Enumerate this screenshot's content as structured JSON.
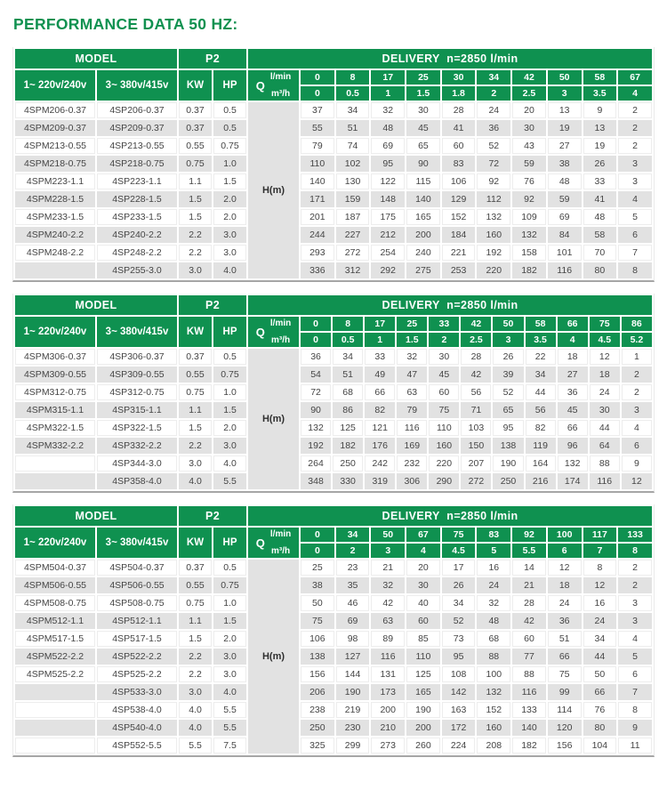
{
  "title": "PERFORMANCE DATA 50 HZ:",
  "colors": {
    "accent_green": "#0f9150",
    "row_stripe": "#e2e2e2",
    "data_text": "#454545"
  },
  "labels": {
    "model": "MODEL",
    "p2": "P2",
    "delivery": "DELIVERY  n=2850 l/min",
    "phase1": "1~ 220v/240v",
    "phase3": "3~ 380v/415v",
    "kw": "KW",
    "hp": "HP",
    "q": "Q",
    "lmin": "l/min",
    "m3h": "m³/h",
    "head": "H(m)"
  },
  "tables": [
    {
      "lmin": [
        "0",
        "8",
        "17",
        "25",
        "30",
        "34",
        "42",
        "50",
        "58",
        "67"
      ],
      "m3h": [
        "0",
        "0.5",
        "1",
        "1.5",
        "1.8",
        "2",
        "2.5",
        "3",
        "3.5",
        "4"
      ],
      "rows": [
        {
          "m1": "4SPM206-0.37",
          "m3": "4SP206-0.37",
          "kw": "0.37",
          "hp": "0.5",
          "h": [
            37,
            34,
            32,
            30,
            28,
            24,
            20,
            13,
            9,
            2
          ]
        },
        {
          "m1": "4SPM209-0.37",
          "m3": "4SP209-0.37",
          "kw": "0.37",
          "hp": "0.5",
          "h": [
            55,
            51,
            48,
            45,
            41,
            36,
            30,
            19,
            13,
            2
          ]
        },
        {
          "m1": "4SPM213-0.55",
          "m3": "4SP213-0.55",
          "kw": "0.55",
          "hp": "0.75",
          "h": [
            79,
            74,
            69,
            65,
            60,
            52,
            43,
            27,
            19,
            2
          ]
        },
        {
          "m1": "4SPM218-0.75",
          "m3": "4SP218-0.75",
          "kw": "0.75",
          "hp": "1.0",
          "h": [
            110,
            102,
            95,
            90,
            83,
            72,
            59,
            38,
            26,
            3
          ]
        },
        {
          "m1": "4SPM223-1.1",
          "m3": "4SP223-1.1",
          "kw": "1.1",
          "hp": "1.5",
          "h": [
            140,
            130,
            122,
            115,
            106,
            92,
            76,
            48,
            33,
            3
          ]
        },
        {
          "m1": "4SPM228-1.5",
          "m3": "4SP228-1.5",
          "kw": "1.5",
          "hp": "2.0",
          "h": [
            171,
            159,
            148,
            140,
            129,
            112,
            92,
            59,
            41,
            4
          ]
        },
        {
          "m1": "4SPM233-1.5",
          "m3": "4SP233-1.5",
          "kw": "1.5",
          "hp": "2.0",
          "h": [
            201,
            187,
            175,
            165,
            152,
            132,
            109,
            69,
            48,
            5
          ]
        },
        {
          "m1": "4SPM240-2.2",
          "m3": "4SP240-2.2",
          "kw": "2.2",
          "hp": "3.0",
          "h": [
            244,
            227,
            212,
            200,
            184,
            160,
            132,
            84,
            58,
            6
          ]
        },
        {
          "m1": "4SPM248-2.2",
          "m3": "4SP248-2.2",
          "kw": "2.2",
          "hp": "3.0",
          "h": [
            293,
            272,
            254,
            240,
            221,
            192,
            158,
            101,
            70,
            7
          ]
        },
        {
          "m1": "",
          "m3": "4SP255-3.0",
          "kw": "3.0",
          "hp": "4.0",
          "h": [
            336,
            312,
            292,
            275,
            253,
            220,
            182,
            116,
            80,
            8
          ]
        }
      ]
    },
    {
      "lmin": [
        "0",
        "8",
        "17",
        "25",
        "33",
        "42",
        "50",
        "58",
        "66",
        "75",
        "86"
      ],
      "m3h": [
        "0",
        "0.5",
        "1",
        "1.5",
        "2",
        "2.5",
        "3",
        "3.5",
        "4",
        "4.5",
        "5.2"
      ],
      "rows": [
        {
          "m1": "4SPM306-0.37",
          "m3": "4SP306-0.37",
          "kw": "0.37",
          "hp": "0.5",
          "h": [
            36,
            34,
            33,
            32,
            30,
            28,
            26,
            22,
            18,
            12,
            1
          ]
        },
        {
          "m1": "4SPM309-0.55",
          "m3": "4SP309-0.55",
          "kw": "0.55",
          "hp": "0.75",
          "h": [
            54,
            51,
            49,
            47,
            45,
            42,
            39,
            34,
            27,
            18,
            2
          ]
        },
        {
          "m1": "4SPM312-0.75",
          "m3": "4SP312-0.75",
          "kw": "0.75",
          "hp": "1.0",
          "h": [
            72,
            68,
            66,
            63,
            60,
            56,
            52,
            44,
            36,
            24,
            2
          ]
        },
        {
          "m1": "4SPM315-1.1",
          "m3": "4SP315-1.1",
          "kw": "1.1",
          "hp": "1.5",
          "h": [
            90,
            86,
            82,
            79,
            75,
            71,
            65,
            56,
            45,
            30,
            3
          ]
        },
        {
          "m1": "4SPM322-1.5",
          "m3": "4SP322-1.5",
          "kw": "1.5",
          "hp": "2.0",
          "h": [
            132,
            125,
            121,
            116,
            110,
            103,
            95,
            82,
            66,
            44,
            4
          ]
        },
        {
          "m1": "4SPM332-2.2",
          "m3": "4SP332-2.2",
          "kw": "2.2",
          "hp": "3.0",
          "h": [
            192,
            182,
            176,
            169,
            160,
            150,
            138,
            119,
            96,
            64,
            6
          ]
        },
        {
          "m1": "",
          "m3": "4SP344-3.0",
          "kw": "3.0",
          "hp": "4.0",
          "h": [
            264,
            250,
            242,
            232,
            220,
            207,
            190,
            164,
            132,
            88,
            9
          ]
        },
        {
          "m1": "",
          "m3": "4SP358-4.0",
          "kw": "4.0",
          "hp": "5.5",
          "h": [
            348,
            330,
            319,
            306,
            290,
            272,
            250,
            216,
            174,
            116,
            12
          ]
        }
      ]
    },
    {
      "lmin": [
        "0",
        "34",
        "50",
        "67",
        "75",
        "83",
        "92",
        "100",
        "117",
        "133"
      ],
      "m3h": [
        "0",
        "2",
        "3",
        "4",
        "4.5",
        "5",
        "5.5",
        "6",
        "7",
        "8"
      ],
      "rows": [
        {
          "m1": "4SPM504-0.37",
          "m3": "4SP504-0.37",
          "kw": "0.37",
          "hp": "0.5",
          "h": [
            25,
            23,
            21,
            20,
            17,
            16,
            14,
            12,
            8,
            2
          ]
        },
        {
          "m1": "4SPM506-0.55",
          "m3": "4SP506-0.55",
          "kw": "0.55",
          "hp": "0.75",
          "h": [
            38,
            35,
            32,
            30,
            26,
            24,
            21,
            18,
            12,
            2
          ]
        },
        {
          "m1": "4SPM508-0.75",
          "m3": "4SP508-0.75",
          "kw": "0.75",
          "hp": "1.0",
          "h": [
            50,
            46,
            42,
            40,
            34,
            32,
            28,
            24,
            16,
            3
          ]
        },
        {
          "m1": "4SPM512-1.1",
          "m3": "4SP512-1.1",
          "kw": "1.1",
          "hp": "1.5",
          "h": [
            75,
            69,
            63,
            60,
            52,
            48,
            42,
            36,
            24,
            3
          ]
        },
        {
          "m1": "4SPM517-1.5",
          "m3": "4SP517-1.5",
          "kw": "1.5",
          "hp": "2.0",
          "h": [
            106,
            98,
            89,
            85,
            73,
            68,
            60,
            51,
            34,
            4
          ]
        },
        {
          "m1": "4SPM522-2.2",
          "m3": "4SP522-2.2",
          "kw": "2.2",
          "hp": "3.0",
          "h": [
            138,
            127,
            116,
            110,
            95,
            88,
            77,
            66,
            44,
            5
          ]
        },
        {
          "m1": "4SPM525-2.2",
          "m3": "4SP525-2.2",
          "kw": "2.2",
          "hp": "3.0",
          "h": [
            156,
            144,
            131,
            125,
            108,
            100,
            88,
            75,
            50,
            6
          ]
        },
        {
          "m1": "",
          "m3": "4SP533-3.0",
          "kw": "3.0",
          "hp": "4.0",
          "h": [
            206,
            190,
            173,
            165,
            142,
            132,
            116,
            99,
            66,
            7
          ]
        },
        {
          "m1": "",
          "m3": "4SP538-4.0",
          "kw": "4.0",
          "hp": "5.5",
          "h": [
            238,
            219,
            200,
            190,
            163,
            152,
            133,
            114,
            76,
            8
          ]
        },
        {
          "m1": "",
          "m3": "4SP540-4.0",
          "kw": "4.0",
          "hp": "5.5",
          "h": [
            250,
            230,
            210,
            200,
            172,
            160,
            140,
            120,
            80,
            9
          ]
        },
        {
          "m1": "",
          "m3": "4SP552-5.5",
          "kw": "5.5",
          "hp": "7.5",
          "h": [
            325,
            299,
            273,
            260,
            224,
            208,
            182,
            156,
            104,
            11
          ]
        }
      ]
    }
  ]
}
